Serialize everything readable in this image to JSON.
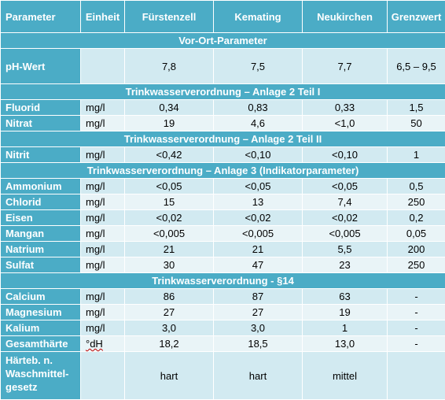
{
  "headers": [
    "Parameter",
    "Einheit",
    "Fürstenzell",
    "Kemating",
    "Neukirchen",
    "Grenzwert"
  ],
  "sections": [
    {
      "title": "Vor-Ort-Parameter",
      "rows": [
        {
          "param": "pH-Wert",
          "unit": "",
          "values": [
            "7,8",
            "7,5",
            "7,7",
            "6,5 – 9,5"
          ]
        }
      ]
    },
    {
      "title": "Trinkwasserverordnung – Anlage 2 Teil I",
      "rows": [
        {
          "param": "Fluorid",
          "unit": "mg/l",
          "values": [
            "0,34",
            "0,83",
            "0,33",
            "1,5"
          ]
        },
        {
          "param": "Nitrat",
          "unit": "mg/l",
          "values": [
            "19",
            "4,6",
            "<1,0",
            "50"
          ]
        }
      ]
    },
    {
      "title": "Trinkwasserverordnung – Anlage 2 Teil II",
      "rows": [
        {
          "param": "Nitrit",
          "unit": "mg/l",
          "values": [
            "<0,42",
            "<0,10",
            "<0,10",
            "1"
          ]
        }
      ]
    },
    {
      "title": "Trinkwasserverordnung – Anlage 3 (Indikatorparameter)",
      "rows": [
        {
          "param": "Ammonium",
          "unit": "mg/l",
          "values": [
            "<0,05",
            "<0,05",
            "<0,05",
            "0,5"
          ]
        },
        {
          "param": "Chlorid",
          "unit": "mg/l",
          "values": [
            "15",
            "13",
            "7,4",
            "250"
          ]
        },
        {
          "param": "Eisen",
          "unit": "mg/l",
          "values": [
            "<0,02",
            "<0,02",
            "<0,02",
            "0,2"
          ]
        },
        {
          "param": "Mangan",
          "unit": "mg/l",
          "values": [
            "<0,005",
            "<0,005",
            "<0,005",
            "0,05"
          ]
        },
        {
          "param": "Natrium",
          "unit": "mg/l",
          "values": [
            "21",
            "21",
            "5,5",
            "200"
          ]
        },
        {
          "param": "Sulfat",
          "unit": "mg/l",
          "values": [
            "30",
            "47",
            "23",
            "250"
          ]
        }
      ]
    },
    {
      "title": "Trinkwasserverordnung - §14",
      "rows": [
        {
          "param": "Calcium",
          "unit": "mg/l",
          "values": [
            "86",
            "87",
            "63",
            "-"
          ]
        },
        {
          "param": "Magnesium",
          "unit": "mg/l",
          "values": [
            "27",
            "27",
            "19",
            "-"
          ]
        },
        {
          "param": "Kalium",
          "unit": "mg/l",
          "values": [
            "3,0",
            "3,0",
            "1",
            "-"
          ]
        },
        {
          "param": "Gesamthärte",
          "unit": "°dH",
          "values": [
            "18,2",
            "18,5",
            "13,0",
            "-"
          ]
        },
        {
          "param": "Härteb. n. Waschmittel-gesetz",
          "unit": "",
          "values": [
            "hart",
            "hart",
            "mittel",
            ""
          ]
        }
      ]
    }
  ]
}
